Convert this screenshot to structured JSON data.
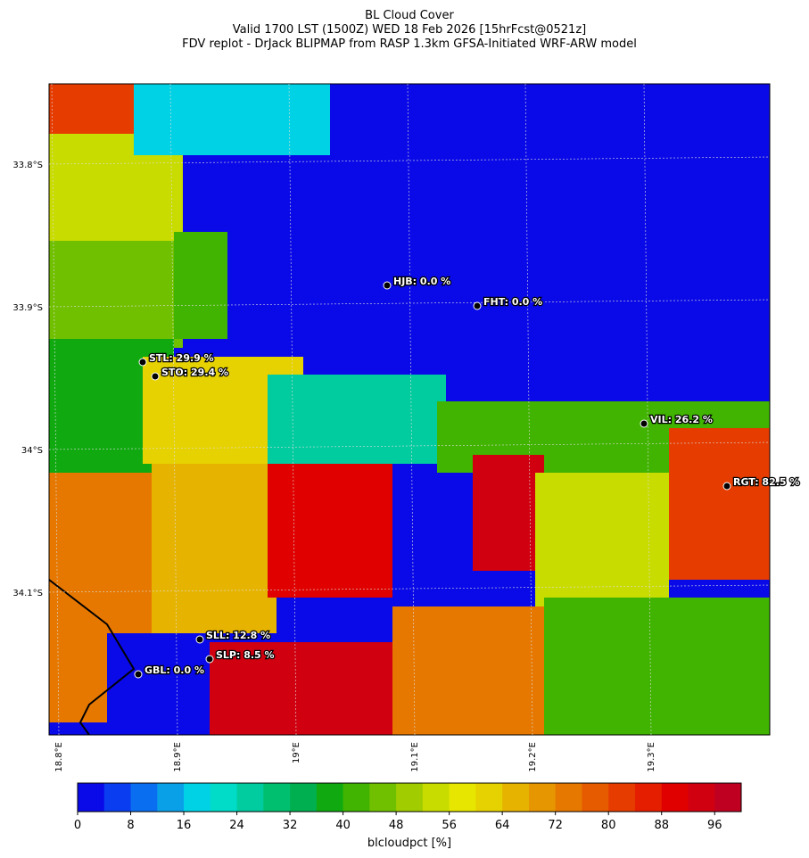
{
  "header": {
    "title_lines": [
      "BL Cloud Cover",
      "Valid 1700 LST (1500Z) WED 18 Feb 2026 [15hrFcst@0521z]",
      "FDV replot - DrJack BLIPMAP from RASP 1.3km GFSA-Initiated WRF-ARW model"
    ]
  },
  "map": {
    "lat_labels": [
      "33.8°S",
      "33.9°S",
      "34°S",
      "34.1°S"
    ],
    "lon_labels": [
      "18.8°E",
      "18.9°E",
      "19°E",
      "19.1°E",
      "19.2°E",
      "19.3°E"
    ],
    "stations": [
      {
        "label": "HJB: 0.0 %"
      },
      {
        "label": "FHT: 0.0 %"
      },
      {
        "label": "STL: 29.9 %"
      },
      {
        "label": "STO: 29.4 %"
      },
      {
        "label": "VIL: 26.2 %"
      },
      {
        "label": "RGT: 82.5 %"
      },
      {
        "label": "SLL: 12.8 %"
      },
      {
        "label": "SLP: 8.5 %"
      },
      {
        "label": "GBL: 0.0 %"
      }
    ]
  },
  "colorbar": {
    "range": [
      0,
      100
    ],
    "ticks": [
      0,
      8,
      16,
      24,
      32,
      40,
      48,
      56,
      64,
      72,
      80,
      88,
      96
    ],
    "colors": [
      "#0a0ae8",
      "#0a3cf0",
      "#0a6ef0",
      "#0aa0e8",
      "#00d2e6",
      "#00dcc8",
      "#00cca0",
      "#00c070",
      "#00b050",
      "#10aa10",
      "#40b400",
      "#70c000",
      "#a0cc00",
      "#c8dc00",
      "#e6e600",
      "#e6d200",
      "#e6b400",
      "#e69600",
      "#e67800",
      "#e65a00",
      "#e63c00",
      "#e61e00",
      "#e00000",
      "#d00010",
      "#c00020"
    ],
    "label": "blcloudpct [%]"
  }
}
